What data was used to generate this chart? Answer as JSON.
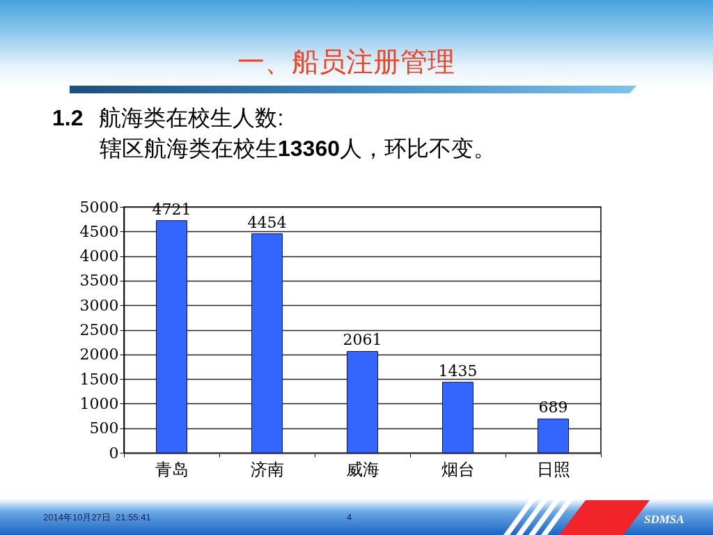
{
  "chart_data": {
    "type": "bar",
    "title": "一、船员注册管理",
    "subtitle": "1.2 航海类在校生人数:",
    "annotations": [
      "辖区航海类在校生13360人，环比不变。",
      "2014年10月27日  21:55:41",
      "4",
      "SDMSA"
    ],
    "categories": [
      "青岛",
      "济南",
      "威海",
      "烟台",
      "日照"
    ],
    "values": [
      4721,
      4454,
      2061,
      1435,
      689
    ],
    "color": "#3366ff",
    "ylim": [
      0,
      5000
    ],
    "yticks": [
      0,
      500,
      1000,
      1500,
      2000,
      2500,
      3000,
      3500,
      4000,
      4500,
      5000
    ],
    "grid": "y",
    "data_labels": true
  }
}
